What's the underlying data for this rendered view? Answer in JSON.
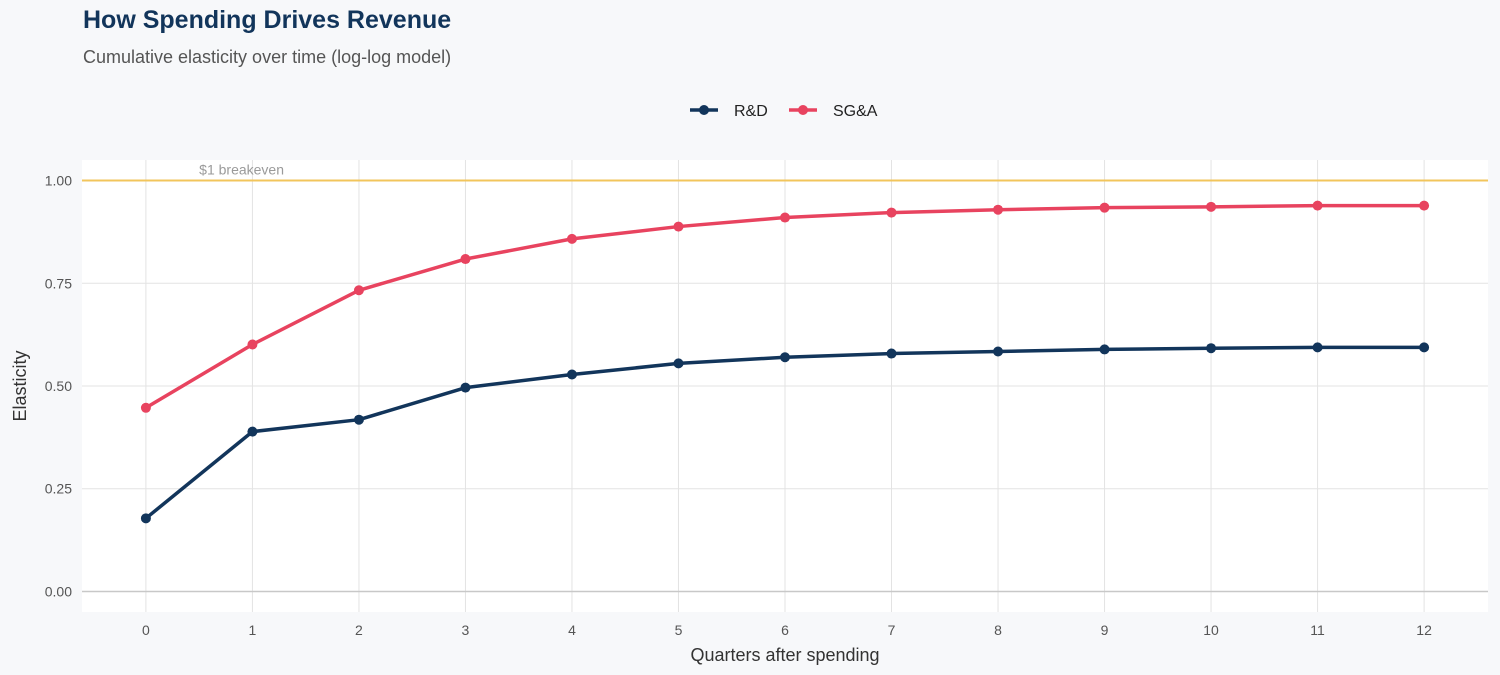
{
  "chart_data": {
    "type": "line",
    "title": "How Spending Drives Revenue",
    "subtitle": "Cumulative elasticity over time (log-log model)",
    "xlabel": "Quarters after spending",
    "ylabel": "Elasticity",
    "x": [
      0,
      1,
      2,
      3,
      4,
      5,
      6,
      7,
      8,
      9,
      10,
      11,
      12
    ],
    "xlim": [
      -0.6,
      12.6
    ],
    "ylim": [
      -0.05,
      1.05
    ],
    "yticks": [
      0,
      0.25,
      0.5,
      0.75,
      1.0
    ],
    "ytick_labels": [
      "0.00",
      "0.25",
      "0.50",
      "0.75",
      "1.00"
    ],
    "grid": true,
    "legend_position": "top",
    "reference_line": {
      "y": 1.0,
      "label": "$1 breakeven",
      "color": "#f2c55c"
    },
    "series": [
      {
        "name": "R&D",
        "color": "#12355b",
        "values": [
          0.178,
          0.389,
          0.418,
          0.496,
          0.528,
          0.555,
          0.57,
          0.579,
          0.584,
          0.589,
          0.592,
          0.594,
          0.594
        ]
      },
      {
        "name": "SG&A",
        "color": "#e8435f",
        "values": [
          0.447,
          0.601,
          0.733,
          0.809,
          0.858,
          0.888,
          0.91,
          0.922,
          0.929,
          0.934,
          0.936,
          0.939,
          0.939
        ]
      }
    ]
  }
}
